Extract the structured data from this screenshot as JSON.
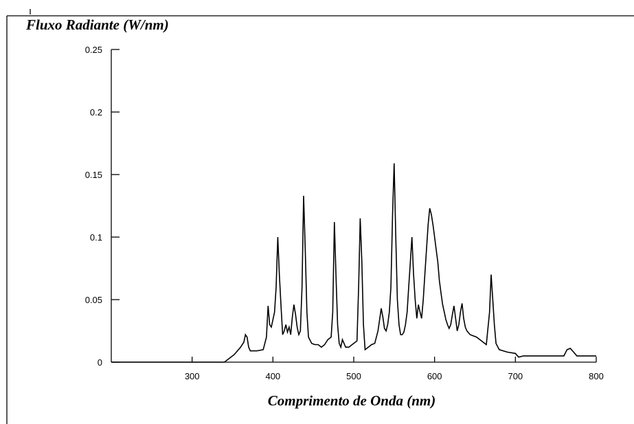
{
  "chart_data": {
    "type": "line",
    "ylabel": "Fluxo Radiante (W/nm)",
    "xlabel": "Comprimento de Onda (nm)",
    "title": "",
    "xlim": [
      200,
      800
    ],
    "ylim": [
      0,
      0.25
    ],
    "x_ticks": [
      300,
      400,
      500,
      600,
      700,
      800
    ],
    "x_tick_labels": [
      "300",
      "400",
      "500",
      "600",
      "700",
      "800"
    ],
    "y_ticks": [
      0,
      0.05,
      0.1,
      0.15,
      0.2,
      0.25
    ],
    "y_tick_labels": [
      "0",
      "0.05",
      "0.1",
      "0.15",
      "0.2",
      "0.25"
    ],
    "grid": false,
    "color": "#000000",
    "series": [
      {
        "x": [
          200,
          340,
          348,
          352,
          356,
          360,
          364,
          366,
          368,
          370,
          372,
          380,
          388,
          392,
          394,
          396,
          398,
          402,
          404,
          406,
          408,
          410,
          412,
          414,
          416,
          418,
          420,
          422,
          424,
          426,
          428,
          430,
          432,
          434,
          436,
          438,
          440,
          442,
          444,
          448,
          452,
          456,
          460,
          464,
          468,
          472,
          474,
          476,
          478,
          480,
          482,
          484,
          486,
          490,
          494,
          498,
          502,
          504,
          506,
          508,
          510,
          512,
          514,
          518,
          522,
          526,
          530,
          534,
          536,
          538,
          540,
          542,
          544,
          546,
          548,
          550,
          552,
          554,
          556,
          558,
          560,
          562,
          564,
          566,
          568,
          570,
          572,
          574,
          576,
          578,
          580,
          582,
          584,
          586,
          588,
          590,
          592,
          594,
          596,
          598,
          600,
          602,
          604,
          606,
          608,
          610,
          612,
          614,
          616,
          618,
          620,
          622,
          624,
          626,
          628,
          630,
          632,
          634,
          636,
          638,
          640,
          644,
          648,
          652,
          656,
          660,
          664,
          668,
          670,
          672,
          674,
          676,
          680,
          690,
          700,
          704,
          710,
          720,
          740,
          760,
          764,
          768,
          772,
          776,
          780,
          790,
          800
        ],
        "y": [
          0,
          0,
          0.004,
          0.006,
          0.009,
          0.012,
          0.016,
          0.022,
          0.02,
          0.012,
          0.009,
          0.009,
          0.01,
          0.02,
          0.045,
          0.03,
          0.028,
          0.04,
          0.06,
          0.1,
          0.07,
          0.045,
          0.022,
          0.025,
          0.03,
          0.024,
          0.028,
          0.022,
          0.036,
          0.046,
          0.038,
          0.028,
          0.022,
          0.025,
          0.06,
          0.133,
          0.09,
          0.04,
          0.02,
          0.015,
          0.014,
          0.014,
          0.012,
          0.014,
          0.018,
          0.02,
          0.04,
          0.112,
          0.07,
          0.03,
          0.015,
          0.012,
          0.018,
          0.012,
          0.012,
          0.014,
          0.016,
          0.017,
          0.06,
          0.115,
          0.08,
          0.03,
          0.01,
          0.012,
          0.014,
          0.015,
          0.025,
          0.043,
          0.036,
          0.027,
          0.025,
          0.03,
          0.04,
          0.06,
          0.118,
          0.159,
          0.1,
          0.05,
          0.03,
          0.022,
          0.022,
          0.024,
          0.03,
          0.04,
          0.06,
          0.08,
          0.1,
          0.07,
          0.05,
          0.035,
          0.046,
          0.04,
          0.035,
          0.05,
          0.07,
          0.09,
          0.11,
          0.123,
          0.118,
          0.11,
          0.1,
          0.09,
          0.08,
          0.065,
          0.055,
          0.046,
          0.04,
          0.034,
          0.03,
          0.027,
          0.03,
          0.038,
          0.045,
          0.035,
          0.025,
          0.03,
          0.04,
          0.047,
          0.035,
          0.028,
          0.025,
          0.022,
          0.021,
          0.02,
          0.018,
          0.016,
          0.014,
          0.04,
          0.07,
          0.05,
          0.03,
          0.015,
          0.01,
          0.008,
          0.007,
          0.004,
          0.005,
          0.005,
          0.005,
          0.005,
          0.01,
          0.011,
          0.008,
          0.005,
          0.005,
          0.005,
          0.005
        ]
      }
    ]
  }
}
